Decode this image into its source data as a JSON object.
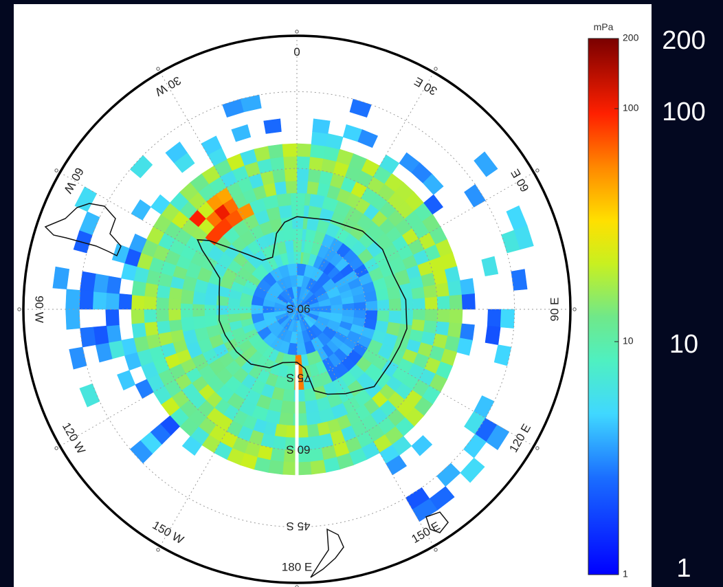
{
  "colorbar": {
    "unit": "mPa",
    "small_ticks": [
      "200",
      "100",
      "10",
      "1"
    ],
    "large_ticks": [
      "200",
      "100",
      "10",
      "1"
    ],
    "scale": "log",
    "range": [
      1,
      200
    ],
    "colormap": "jet"
  },
  "map": {
    "projection": "south-polar-stereographic",
    "meridian_labels": [
      "0",
      "30 E",
      "60 E",
      "90 E",
      "120 E",
      "150 E",
      "180 E",
      "150 W",
      "120 W",
      "90 W",
      "60 W",
      "30 W"
    ],
    "latitude_labels": [
      "90 S",
      "75 S",
      "60 S",
      "45 S"
    ]
  },
  "colors": {
    "background": "#030820",
    "panel": "#ffffff"
  }
}
